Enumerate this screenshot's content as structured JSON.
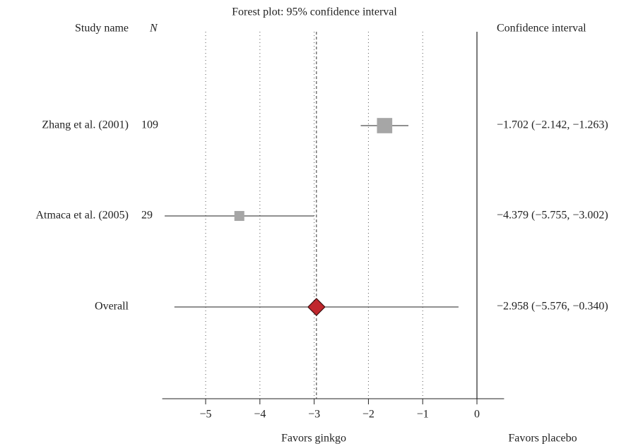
{
  "chart_data": {
    "type": "forest",
    "title": "Forest plot: 95% confidence interval",
    "study_header": "Study name",
    "n_header": "N",
    "ci_header": "Confidence interval",
    "xlabel_left": "Favors ginkgo",
    "xlabel_right": "Favors placebo",
    "studies": [
      {
        "name": "Zhang et al. (2001)",
        "n": 109,
        "estimate": -1.702,
        "lower": -2.142,
        "upper": -1.263,
        "ci_label": "−1.702 (−2.142, −1.263)",
        "color": "#a6a6a6"
      },
      {
        "name": "Atmaca et al. (2005)",
        "n": 29,
        "estimate": -4.379,
        "lower": -5.755,
        "upper": -3.002,
        "ci_label": "−4.379 (−5.755, −3.002)",
        "color": "#a6a6a6"
      }
    ],
    "overall": {
      "name": "Overall",
      "estimate": -2.958,
      "lower": -5.576,
      "upper": -0.34,
      "ci_label": "−2.958 (−5.576, −0.340)",
      "color": "#c0272d"
    },
    "xlim": [
      -5.8,
      0.5
    ],
    "xticks": [
      {
        "value": -5,
        "label": "−5"
      },
      {
        "value": -4,
        "label": "−4"
      },
      {
        "value": -3,
        "label": "−3"
      },
      {
        "value": -2,
        "label": "−2"
      },
      {
        "value": -1,
        "label": "−1"
      },
      0
    ],
    "grid": true
  }
}
